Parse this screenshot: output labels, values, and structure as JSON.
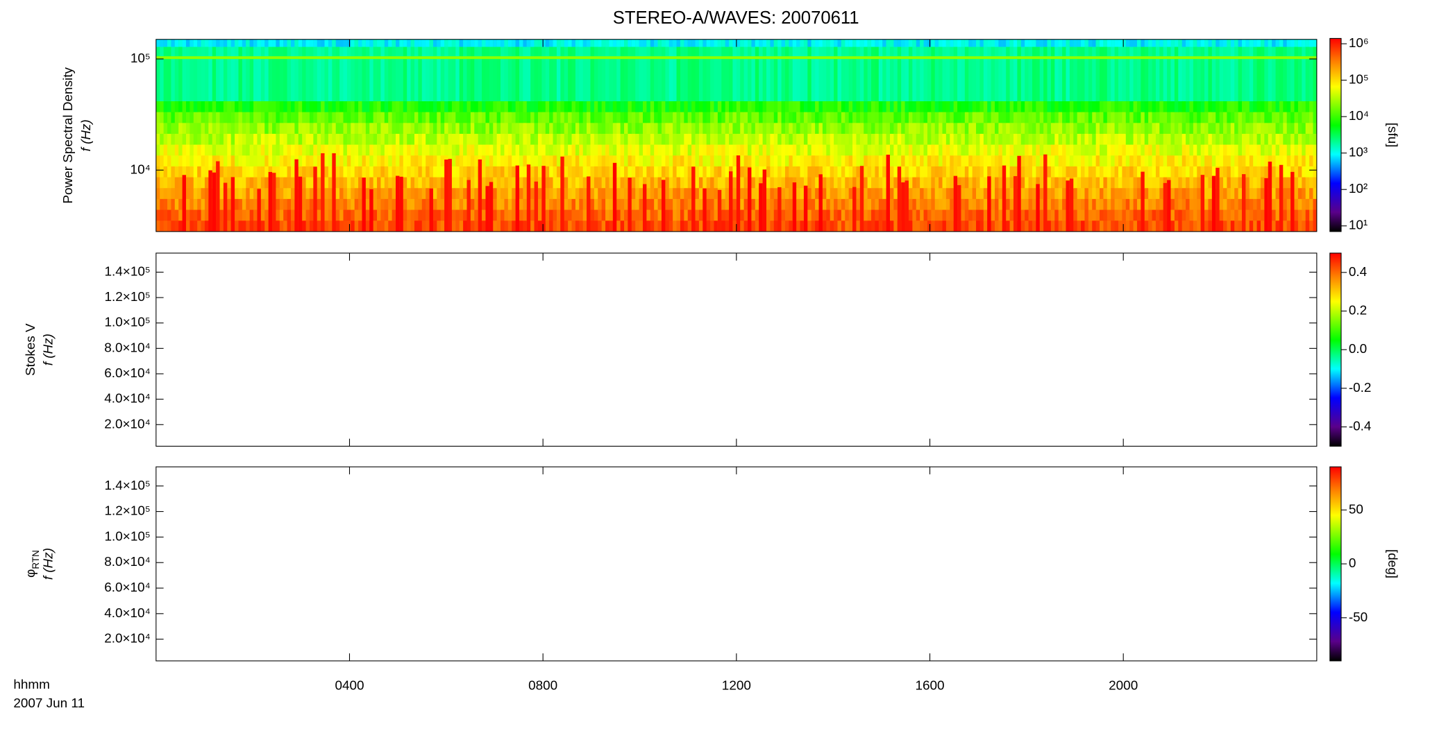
{
  "title": "STEREO-A/WAVES: 20070611",
  "x_axis": {
    "xlim": [
      0,
      24
    ],
    "xticks": [
      {
        "value": 4,
        "label": "0400"
      },
      {
        "value": 8,
        "label": "0800"
      },
      {
        "value": 12,
        "label": "1200"
      },
      {
        "value": 16,
        "label": "1600"
      },
      {
        "value": 20,
        "label": "2000"
      }
    ],
    "label": "hhmm",
    "date": "2007 Jun 11"
  },
  "panels": [
    {
      "type": "spectrogram",
      "ylabel": "Power Spectral Density",
      "ylabel_unit": "f (Hz)",
      "log_y": true,
      "ylim": [
        2800,
        150000
      ],
      "yticks": [
        {
          "value": 10000,
          "label": "10⁴"
        },
        {
          "value": 100000,
          "label": "10⁵"
        }
      ],
      "colorbar": {
        "log": true,
        "clim": [
          7,
          1400000
        ],
        "label": "[sfu]",
        "ticks": [
          {
            "value": 10,
            "label": "10¹"
          },
          {
            "value": 100,
            "label": "10²"
          },
          {
            "value": 1000,
            "label": "10³"
          },
          {
            "value": 10000,
            "label": "10⁴"
          },
          {
            "value": 100000,
            "label": "10⁵"
          },
          {
            "value": 1000000,
            "label": "10⁶"
          }
        ]
      }
    },
    {
      "type": "empty",
      "ylabel": "Stokes V",
      "ylabel_unit": "f (Hz)",
      "log_y": false,
      "ylim": [
        3000,
        155000
      ],
      "yticks": [
        {
          "value": 20000,
          "label": "2.0×10⁴"
        },
        {
          "value": 40000,
          "label": "4.0×10⁴"
        },
        {
          "value": 60000,
          "label": "6.0×10⁴"
        },
        {
          "value": 80000,
          "label": "8.0×10⁴"
        },
        {
          "value": 100000,
          "label": "1.0×10⁵"
        },
        {
          "value": 120000,
          "label": "1.2×10⁵"
        },
        {
          "value": 140000,
          "label": "1.4×10⁵"
        }
      ],
      "colorbar": {
        "log": false,
        "clim": [
          -0.5,
          0.5
        ],
        "ticks": [
          {
            "value": -0.4,
            "label": "-0.4"
          },
          {
            "value": -0.2,
            "label": "-0.2"
          },
          {
            "value": 0,
            "label": "0.0"
          },
          {
            "value": 0.2,
            "label": "0.2"
          },
          {
            "value": 0.4,
            "label": "0.4"
          }
        ]
      }
    },
    {
      "type": "empty",
      "ylabel": "φ",
      "ylabel_sub": "RTN",
      "ylabel_unit": "f (Hz)",
      "log_y": false,
      "ylim": [
        3000,
        155000
      ],
      "yticks": [
        {
          "value": 20000,
          "label": "2.0×10⁴"
        },
        {
          "value": 40000,
          "label": "4.0×10⁴"
        },
        {
          "value": 60000,
          "label": "6.0×10⁴"
        },
        {
          "value": 80000,
          "label": "8.0×10⁴"
        },
        {
          "value": 100000,
          "label": "1.0×10⁵"
        },
        {
          "value": 120000,
          "label": "1.2×10⁵"
        },
        {
          "value": 140000,
          "label": "1.4×10⁵"
        }
      ],
      "colorbar": {
        "log": false,
        "clim": [
          -90,
          90
        ],
        "label": "[deg]",
        "ticks": [
          -50,
          0,
          50
        ]
      }
    }
  ]
}
